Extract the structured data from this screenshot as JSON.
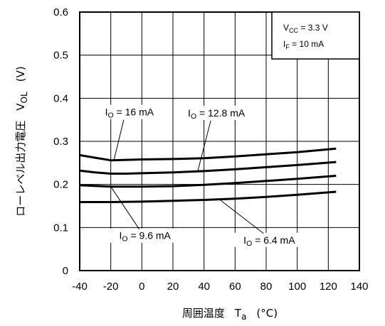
{
  "chart_data": {
    "type": "line",
    "title": "",
    "xlabel": {
      "text": "周囲温度",
      "symbol": "T",
      "subscript": "a",
      "unit": "(°C)"
    },
    "ylabel": {
      "text": "ローレベル出力電圧",
      "symbol": "V",
      "subscript": "OL",
      "unit": "(V)"
    },
    "xlim": [
      -40,
      140
    ],
    "ylim": [
      0,
      0.6
    ],
    "xticks": [
      "-40",
      "-20",
      "0",
      "20",
      "40",
      "60",
      "80",
      "100",
      "120",
      "140"
    ],
    "yticks": [
      "0",
      "0.1",
      "0.2",
      "0.3",
      "0.4",
      "0.5",
      "0.6"
    ],
    "grid": true,
    "conditions": [
      {
        "symbol": "V",
        "subscript": "CC",
        "text": " = 3.3 V"
      },
      {
        "symbol": "I",
        "subscript": "F",
        "text": " = 10 mA"
      }
    ],
    "series": [
      {
        "name": "IO = 16 mA",
        "x": [
          -40,
          -30,
          -20,
          -10,
          0,
          20,
          40,
          60,
          80,
          100,
          125
        ],
        "y": [
          0.268,
          0.262,
          0.256,
          0.257,
          0.258,
          0.259,
          0.261,
          0.265,
          0.27,
          0.275,
          0.283
        ]
      },
      {
        "name": "IO = 12.8 mA",
        "x": [
          -40,
          -30,
          -20,
          -10,
          0,
          20,
          40,
          60,
          80,
          100,
          125
        ],
        "y": [
          0.232,
          0.228,
          0.225,
          0.225,
          0.226,
          0.228,
          0.231,
          0.235,
          0.24,
          0.245,
          0.252
        ]
      },
      {
        "name": "IO = 9.6 mA",
        "x": [
          -40,
          -20,
          0,
          20,
          40,
          60,
          80,
          100,
          125
        ],
        "y": [
          0.198,
          0.195,
          0.195,
          0.196,
          0.199,
          0.203,
          0.208,
          0.213,
          0.22
        ]
      },
      {
        "name": "IO = 6.4 mA",
        "x": [
          -40,
          -20,
          0,
          20,
          40,
          60,
          80,
          100,
          125
        ],
        "y": [
          0.159,
          0.159,
          0.16,
          0.162,
          0.164,
          0.167,
          0.171,
          0.176,
          0.183
        ]
      }
    ],
    "annotations": [
      {
        "symbol": "I",
        "subscript": "O",
        "text": " = 16 mA",
        "series": 0,
        "label_x": -8,
        "label_y": 0.36,
        "arrow_to_x": -18,
        "arrow_to_y": 0.256
      },
      {
        "symbol": "I",
        "subscript": "O",
        "text": " = 12.8 mA",
        "series": 1,
        "label_x": 48,
        "label_y": 0.358,
        "arrow_to_x": 36,
        "arrow_to_y": 0.231
      },
      {
        "symbol": "I",
        "subscript": "O",
        "text": " = 9.6 mA",
        "series": 2,
        "label_x": 2,
        "label_y": 0.073,
        "arrow_to_x": -20,
        "arrow_to_y": 0.195
      },
      {
        "symbol": "I",
        "subscript": "O",
        "text": " = 6.4 mA",
        "series": 3,
        "label_x": 82,
        "label_y": 0.063,
        "arrow_to_x": 50,
        "arrow_to_y": 0.165
      }
    ]
  }
}
